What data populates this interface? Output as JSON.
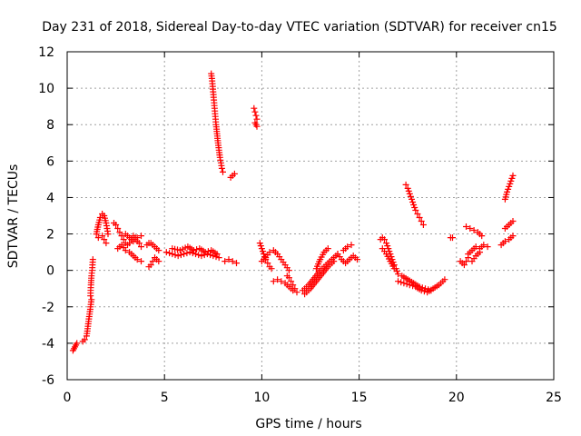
{
  "chart_data": {
    "type": "scatter",
    "title": "Day 231 of 2018, Sidereal Day-to-day VTEC variation (SDTVAR) for receiver cn15",
    "xlabel": "GPS time / hours",
    "ylabel": "SDTVAR / TECUs",
    "xlim": [
      0,
      25
    ],
    "ylim": [
      -6,
      12
    ],
    "xticks": [
      0,
      5,
      10,
      15,
      20,
      25
    ],
    "yticks": [
      -6,
      -4,
      -2,
      0,
      2,
      4,
      6,
      8,
      10,
      12
    ],
    "grid": true,
    "marker": "+",
    "series_color": "#ff0000",
    "segments": [
      {
        "x": [
          0.3,
          0.35,
          0.4,
          0.45,
          0.5
        ],
        "y": [
          -4.4,
          -4.3,
          -4.2,
          -4.1,
          -4.0
        ]
      },
      {
        "x": [
          0.8,
          0.9,
          1.0,
          1.05,
          1.1,
          1.15,
          1.2,
          1.25
        ],
        "y": [
          -3.9,
          -3.8,
          -3.6,
          -3.2,
          -2.8,
          -2.4,
          -2.0,
          -1.6
        ]
      },
      {
        "x": [
          1.2,
          1.22,
          1.25,
          1.28,
          1.3,
          1.32
        ],
        "y": [
          -1.4,
          -0.8,
          -0.3,
          0.0,
          0.3,
          0.6
        ]
      },
      {
        "x": [
          1.5,
          1.6,
          1.7,
          1.8,
          1.9,
          2.0,
          2.1
        ],
        "y": [
          2.0,
          2.5,
          2.9,
          3.1,
          3.0,
          2.6,
          2.0
        ]
      },
      {
        "x": [
          1.6,
          1.8,
          1.9,
          2.0
        ],
        "y": [
          1.8,
          1.9,
          1.7,
          1.5
        ]
      },
      {
        "x": [
          2.4,
          2.5,
          2.6,
          2.7,
          2.8,
          2.9,
          3.0,
          3.1,
          3.2,
          3.3,
          3.4,
          3.5,
          3.6,
          3.7,
          3.8
        ],
        "y": [
          2.6,
          2.5,
          2.3,
          2.1,
          1.9,
          1.7,
          1.5,
          1.4,
          1.5,
          1.7,
          1.9,
          1.8,
          1.6,
          1.5,
          1.3
        ]
      },
      {
        "x": [
          2.6,
          2.8,
          3.0,
          3.2,
          3.4,
          3.6,
          3.8
        ],
        "y": [
          1.2,
          1.4,
          1.1,
          1.0,
          0.8,
          0.6,
          0.5
        ]
      },
      {
        "x": [
          3.0,
          3.2,
          3.4,
          3.6,
          3.8
        ],
        "y": [
          2.0,
          1.8,
          1.6,
          1.8,
          1.9
        ]
      },
      {
        "x": [
          4.1,
          4.2,
          4.3,
          4.4,
          4.5,
          4.6,
          4.7
        ],
        "y": [
          1.4,
          1.5,
          1.5,
          1.4,
          1.3,
          1.2,
          1.1
        ]
      },
      {
        "x": [
          4.2,
          4.3,
          4.4,
          4.5,
          4.6,
          4.7
        ],
        "y": [
          0.2,
          0.3,
          0.5,
          0.7,
          0.6,
          0.5
        ]
      },
      {
        "x": [
          5.1,
          5.4,
          5.7,
          6.0,
          6.3,
          6.6,
          6.9,
          7.2,
          7.5,
          7.8
        ],
        "y": [
          1.0,
          0.9,
          0.8,
          0.9,
          1.0,
          0.9,
          0.8,
          0.9,
          0.8,
          0.7
        ]
      },
      {
        "x": [
          5.4,
          5.8,
          6.2,
          6.5,
          6.8,
          7.1,
          7.4,
          7.7
        ],
        "y": [
          1.2,
          1.1,
          1.3,
          1.1,
          1.2,
          1.0,
          1.1,
          0.9
        ]
      },
      {
        "x": [
          7.4,
          7.45,
          7.5,
          7.55,
          7.6,
          7.65,
          7.7,
          7.75,
          7.8,
          7.85,
          7.9,
          7.95,
          8.0
        ],
        "y": [
          10.8,
          10.4,
          9.8,
          9.2,
          8.6,
          8.0,
          7.5,
          7.0,
          6.6,
          6.2,
          5.9,
          5.6,
          5.4
        ]
      },
      {
        "x": [
          8.4,
          8.5,
          8.6
        ],
        "y": [
          5.1,
          5.2,
          5.3
        ]
      },
      {
        "x": [
          8.1,
          8.3,
          8.5,
          8.7
        ],
        "y": [
          0.5,
          0.6,
          0.5,
          0.4
        ]
      },
      {
        "x": [
          9.6,
          9.65,
          9.7,
          9.75
        ],
        "y": [
          8.9,
          8.7,
          8.5,
          8.3
        ]
      },
      {
        "x": [
          9.65,
          9.7,
          9.75
        ],
        "y": [
          8.1,
          8.0,
          7.9
        ]
      },
      {
        "x": [
          9.9,
          10.0,
          10.1,
          10.2,
          10.3,
          10.4,
          10.5
        ],
        "y": [
          1.5,
          1.2,
          0.9,
          0.6,
          0.4,
          0.2,
          0.1
        ]
      },
      {
        "x": [
          10.0,
          10.2,
          10.4,
          10.6,
          10.8,
          11.0,
          11.2,
          11.4
        ],
        "y": [
          0.5,
          0.7,
          1.0,
          1.1,
          0.9,
          0.6,
          0.3,
          0.0
        ]
      },
      {
        "x": [
          10.6,
          10.8,
          11.0,
          11.2,
          11.4,
          11.6,
          11.8
        ],
        "y": [
          -0.6,
          -0.5,
          -0.6,
          -0.7,
          -0.9,
          -1.1,
          -1.2
        ]
      },
      {
        "x": [
          11.3,
          11.4,
          11.5,
          11.6,
          11.7
        ],
        "y": [
          -0.3,
          -0.4,
          -0.6,
          -0.8,
          -1.0
        ]
      },
      {
        "x": [
          12.1,
          12.4,
          12.7,
          13.0,
          13.3,
          13.6,
          13.9
        ],
        "y": [
          -1.1,
          -0.8,
          -0.4,
          0.0,
          0.3,
          0.6,
          0.9
        ]
      },
      {
        "x": [
          12.2,
          12.5,
          12.8,
          13.1,
          13.4,
          13.7
        ],
        "y": [
          -1.3,
          -1.0,
          -0.6,
          -0.2,
          0.2,
          0.5
        ]
      },
      {
        "x": [
          12.8,
          13.0,
          13.2,
          13.4
        ],
        "y": [
          0.1,
          0.6,
          1.0,
          1.2
        ]
      },
      {
        "x": [
          13.9,
          14.1,
          14.3,
          14.5,
          14.7,
          14.9
        ],
        "y": [
          0.9,
          0.6,
          0.4,
          0.6,
          0.8,
          0.6
        ]
      },
      {
        "x": [
          14.2,
          14.4,
          14.6
        ],
        "y": [
          1.1,
          1.3,
          1.4
        ]
      },
      {
        "x": [
          16.1,
          16.2,
          16.3,
          16.4,
          16.5,
          16.6,
          16.7,
          16.8,
          16.9,
          17.0
        ],
        "y": [
          1.7,
          1.8,
          1.7,
          1.5,
          1.2,
          0.9,
          0.6,
          0.3,
          0.1,
          -0.2
        ]
      },
      {
        "x": [
          16.2,
          16.4,
          16.6,
          16.8
        ],
        "y": [
          1.2,
          0.9,
          0.5,
          0.1
        ]
      },
      {
        "x": [
          17.0,
          17.3,
          17.6,
          17.9,
          18.2,
          18.5,
          18.8,
          19.1,
          19.4
        ],
        "y": [
          -0.6,
          -0.7,
          -0.8,
          -0.9,
          -1.1,
          -1.2,
          -1.0,
          -0.8,
          -0.5
        ]
      },
      {
        "x": [
          17.2,
          17.5,
          17.8,
          18.1,
          18.4,
          18.7
        ],
        "y": [
          -0.3,
          -0.5,
          -0.7,
          -0.9,
          -1.0,
          -1.1
        ]
      },
      {
        "x": [
          17.4,
          17.5,
          17.6,
          17.7,
          17.8,
          17.9,
          18.0,
          18.1,
          18.2,
          18.3
        ],
        "y": [
          4.7,
          4.5,
          4.2,
          3.9,
          3.6,
          3.3,
          3.1,
          2.9,
          2.7,
          2.5
        ]
      },
      {
        "x": [
          19.7,
          19.8
        ],
        "y": [
          1.8,
          1.8
        ]
      },
      {
        "x": [
          20.2,
          20.3,
          20.4,
          20.5,
          20.6
        ],
        "y": [
          0.5,
          0.4,
          0.3,
          0.5,
          0.7
        ]
      },
      {
        "x": [
          20.5,
          20.7,
          20.9,
          21.1,
          21.3
        ],
        "y": [
          2.4,
          2.3,
          2.2,
          2.1,
          1.9
        ]
      },
      {
        "x": [
          20.6,
          20.8,
          21.0,
          21.2,
          21.4,
          21.6
        ],
        "y": [
          0.9,
          1.1,
          1.3,
          1.2,
          1.4,
          1.3
        ]
      },
      {
        "x": [
          20.8,
          21.0,
          21.2
        ],
        "y": [
          0.5,
          0.8,
          1.0
        ]
      },
      {
        "x": [
          22.3,
          22.5,
          22.7,
          22.9
        ],
        "y": [
          1.4,
          1.6,
          1.7,
          1.9
        ]
      },
      {
        "x": [
          22.5,
          22.6,
          22.7,
          22.8,
          22.9
        ],
        "y": [
          2.3,
          2.4,
          2.5,
          2.6,
          2.7
        ]
      },
      {
        "x": [
          22.5,
          22.6,
          22.7,
          22.8,
          22.9
        ],
        "y": [
          3.9,
          4.3,
          4.6,
          4.9,
          5.2
        ]
      }
    ]
  }
}
